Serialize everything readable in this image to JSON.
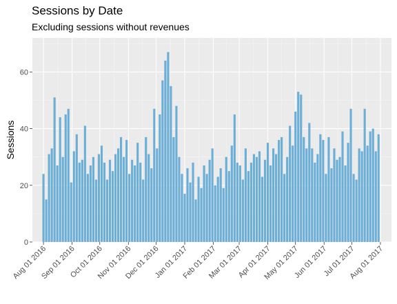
{
  "chart_data": {
    "type": "bar",
    "title": "Sessions by Date",
    "subtitle": "Excluding sessions without revenues",
    "xlabel": "",
    "ylabel": "Sessions",
    "ylim": [
      0,
      72
    ],
    "y_ticks": [
      0,
      20,
      40,
      60
    ],
    "x_ticks": [
      {
        "date": "2016-08-01",
        "label": "Aug 01 2016"
      },
      {
        "date": "2016-09-01",
        "label": "Sep 01 2016"
      },
      {
        "date": "2016-10-01",
        "label": "Oct 01 2016"
      },
      {
        "date": "2016-11-01",
        "label": "Nov 01 2016"
      },
      {
        "date": "2016-12-01",
        "label": "Dec 01 2016"
      },
      {
        "date": "2017-01-01",
        "label": "Jan 01 2017"
      },
      {
        "date": "2017-02-01",
        "label": "Feb 01 2017"
      },
      {
        "date": "2017-03-01",
        "label": "Mar 01 2017"
      },
      {
        "date": "2017-04-01",
        "label": "Apr 01 2017"
      },
      {
        "date": "2017-05-01",
        "label": "May 01 2017"
      },
      {
        "date": "2017-06-01",
        "label": "Jun 01 2017"
      },
      {
        "date": "2017-07-01",
        "label": "Jul 01 2017"
      },
      {
        "date": "2017-08-01",
        "label": "Aug 01 2017"
      }
    ],
    "x_start": "2016-08-01",
    "grid": true,
    "bar_color": "#6baed6",
    "panel_color": "#ebebeb",
    "x": [
      "2016-08-01",
      "2016-08-04",
      "2016-08-07",
      "2016-08-10",
      "2016-08-13",
      "2016-08-16",
      "2016-08-19",
      "2016-08-22",
      "2016-08-25",
      "2016-08-28",
      "2016-08-31",
      "2016-09-03",
      "2016-09-06",
      "2016-09-09",
      "2016-09-12",
      "2016-09-15",
      "2016-09-18",
      "2016-09-21",
      "2016-09-24",
      "2016-09-27",
      "2016-09-30",
      "2016-10-03",
      "2016-10-06",
      "2016-10-09",
      "2016-10-12",
      "2016-10-15",
      "2016-10-18",
      "2016-10-21",
      "2016-10-24",
      "2016-10-27",
      "2016-10-30",
      "2016-11-02",
      "2016-11-05",
      "2016-11-08",
      "2016-11-11",
      "2016-11-14",
      "2016-11-17",
      "2016-11-20",
      "2016-11-23",
      "2016-11-26",
      "2016-11-29",
      "2016-12-02",
      "2016-12-05",
      "2016-12-08",
      "2016-12-11",
      "2016-12-14",
      "2016-12-17",
      "2016-12-20",
      "2016-12-23",
      "2016-12-26",
      "2016-12-29",
      "2017-01-01",
      "2017-01-04",
      "2017-01-07",
      "2017-01-10",
      "2017-01-13",
      "2017-01-16",
      "2017-01-19",
      "2017-01-22",
      "2017-01-25",
      "2017-01-28",
      "2017-01-31",
      "2017-02-03",
      "2017-02-06",
      "2017-02-09",
      "2017-02-12",
      "2017-02-15",
      "2017-02-18",
      "2017-02-21",
      "2017-02-24",
      "2017-02-27",
      "2017-03-02",
      "2017-03-05",
      "2017-03-08",
      "2017-03-11",
      "2017-03-14",
      "2017-03-17",
      "2017-03-20",
      "2017-03-23",
      "2017-03-26",
      "2017-03-29",
      "2017-04-01",
      "2017-04-04",
      "2017-04-07",
      "2017-04-10",
      "2017-04-13",
      "2017-04-16",
      "2017-04-19",
      "2017-04-22",
      "2017-04-25",
      "2017-04-28",
      "2017-05-01",
      "2017-05-04",
      "2017-05-07",
      "2017-05-10",
      "2017-05-13",
      "2017-05-16",
      "2017-05-19",
      "2017-05-22",
      "2017-05-25",
      "2017-05-28",
      "2017-05-31",
      "2017-06-03",
      "2017-06-06",
      "2017-06-09",
      "2017-06-12",
      "2017-06-15",
      "2017-06-18",
      "2017-06-21",
      "2017-06-24",
      "2017-06-27",
      "2017-06-30",
      "2017-07-03",
      "2017-07-06",
      "2017-07-09",
      "2017-07-12",
      "2017-07-15",
      "2017-07-18",
      "2017-07-21",
      "2017-07-24",
      "2017-07-27",
      "2017-07-30"
    ],
    "values": [
      24,
      15,
      31,
      33,
      51,
      27,
      44,
      30,
      45,
      47,
      21,
      32,
      38,
      28,
      29,
      41,
      24,
      27,
      30,
      22,
      31,
      34,
      28,
      22,
      29,
      25,
      31,
      33,
      37,
      30,
      36,
      24,
      29,
      27,
      35,
      28,
      22,
      37,
      31,
      26,
      47,
      33,
      45,
      57,
      64,
      67,
      55,
      37,
      48,
      30,
      24,
      17,
      26,
      21,
      28,
      15,
      23,
      19,
      27,
      24,
      29,
      33,
      20,
      23,
      26,
      19,
      30,
      25,
      34,
      45,
      28,
      27,
      22,
      33,
      25,
      28,
      31,
      30,
      32,
      23,
      29,
      35,
      27,
      33,
      31,
      36,
      37,
      24,
      30,
      41,
      34,
      46,
      53,
      52,
      37,
      33,
      42,
      33,
      28,
      31,
      38,
      36,
      24,
      37,
      26,
      33,
      29,
      30,
      39,
      27,
      35,
      47,
      24,
      22,
      33,
      32,
      47,
      34,
      39,
      40,
      32,
      38
    ]
  }
}
